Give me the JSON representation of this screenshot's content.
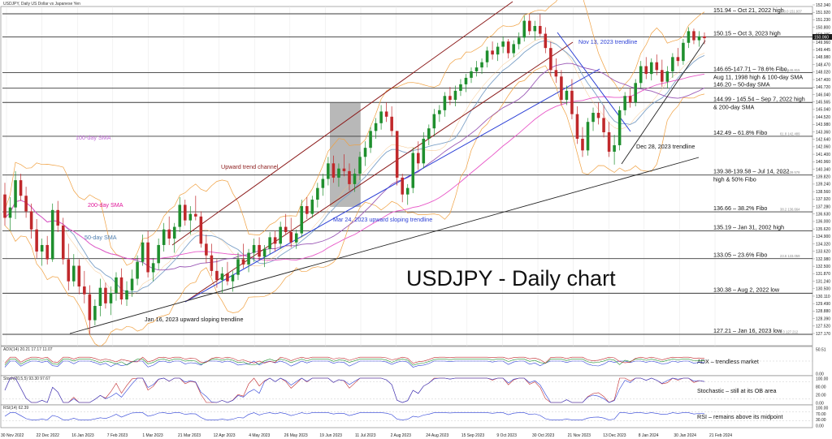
{
  "header": {
    "symbol_text": "USDJPY, Daily  US Dollar vs Japanese Yen"
  },
  "chart_data": {
    "type": "candlestick",
    "title": "USDJPY - Daily chart",
    "x_ticks": [
      "30 Nov 2022",
      "22 Dec 2022",
      "16 Jan 2023",
      "7 Feb 2023",
      "1 Mar 2023",
      "21 Mar 2023",
      "12 Apr 2023",
      "4 May 2023",
      "26 May 2023",
      "19 Jun 2023",
      "11 Jul 2023",
      "2 Aug 2023",
      "24 Aug 2023",
      "15 Sep 2023",
      "9 Oct 2023",
      "30 Oct 2023",
      "21 Nov 2023",
      "13 Dec 2023",
      "8 Jan 2024",
      "30 Jan 2024",
      "21 Feb 2024"
    ],
    "y_ticks": [
      152.34,
      151.92,
      151.23,
      150.8,
      150.385,
      149.96,
      149.445,
      148.98,
      148.47,
      148.02,
      147.4,
      146.72,
      146.04,
      145.565,
      145.04,
      144.52,
      143.98,
      143.36,
      142.64,
      142.06,
      141.4,
      140.96,
      140.34,
      139.82,
      139.24,
      138.56,
      137.92,
      137.28,
      136.63,
      136.0,
      135.62,
      134.9,
      134.32,
      133.62,
      132.98,
      132.5,
      131.87,
      131.24,
      130.5,
      130.11,
      129.49,
      128.88,
      128.39,
      127.52,
      127.17
    ],
    "y_range": [
      127.2,
      152.34
    ],
    "current_price": 150.06,
    "candles": [
      [
        138.0,
        138.9,
        135.6,
        136.2
      ],
      [
        136.2,
        137.8,
        135.2,
        137.0
      ],
      [
        137.0,
        139.8,
        136.1,
        139.1
      ],
      [
        139.1,
        139.6,
        137.5,
        137.9
      ],
      [
        137.9,
        138.6,
        136.2,
        136.7
      ],
      [
        136.7,
        137.3,
        134.6,
        135.3
      ],
      [
        135.3,
        136.1,
        133.1,
        133.6
      ],
      [
        133.6,
        134.6,
        132.5,
        134.1
      ],
      [
        134.1,
        134.8,
        132.6,
        133.0
      ],
      [
        133.0,
        137.3,
        132.8,
        136.8
      ],
      [
        136.8,
        137.5,
        135.1,
        135.6
      ],
      [
        135.6,
        136.2,
        132.6,
        133.0
      ],
      [
        133.0,
        134.2,
        130.6,
        131.3
      ],
      [
        131.3,
        133.4,
        130.9,
        132.5
      ],
      [
        132.5,
        133.0,
        130.3,
        130.9
      ],
      [
        130.9,
        132.1,
        129.6,
        130.3
      ],
      [
        130.3,
        131.0,
        127.2,
        128.3
      ],
      [
        128.3,
        129.9,
        127.9,
        129.4
      ],
      [
        129.4,
        131.5,
        128.6,
        130.8
      ],
      [
        130.8,
        131.2,
        129.2,
        129.6
      ],
      [
        129.6,
        130.9,
        128.7,
        130.4
      ],
      [
        130.4,
        132.0,
        129.8,
        131.6
      ],
      [
        131.6,
        132.3,
        129.5,
        129.9
      ],
      [
        129.9,
        131.3,
        129.4,
        130.6
      ],
      [
        130.6,
        132.2,
        130.1,
        131.5
      ],
      [
        131.5,
        133.3,
        131.0,
        132.8
      ],
      [
        132.8,
        134.9,
        132.5,
        134.3
      ],
      [
        134.3,
        135.2,
        131.6,
        132.0
      ],
      [
        132.0,
        133.1,
        131.3,
        132.7
      ],
      [
        132.7,
        134.6,
        132.2,
        134.1
      ],
      [
        134.1,
        135.8,
        133.6,
        135.3
      ],
      [
        135.3,
        136.3,
        134.1,
        134.6
      ],
      [
        134.6,
        135.8,
        133.5,
        135.5
      ],
      [
        135.5,
        137.8,
        135.1,
        137.2
      ],
      [
        137.2,
        137.6,
        135.6,
        136.0
      ],
      [
        136.0,
        137.1,
        134.9,
        136.5
      ],
      [
        136.5,
        137.9,
        136.0,
        136.3
      ],
      [
        136.3,
        136.7,
        133.9,
        134.2
      ],
      [
        134.2,
        134.9,
        132.7,
        133.3
      ],
      [
        133.3,
        134.2,
        131.7,
        132.1
      ],
      [
        132.1,
        133.0,
        130.8,
        131.4
      ],
      [
        131.4,
        132.4,
        130.4,
        131.9
      ],
      [
        131.9,
        132.8,
        131.0,
        131.3
      ],
      [
        131.3,
        132.1,
        130.5,
        131.8
      ],
      [
        131.8,
        133.5,
        131.4,
        133.0
      ],
      [
        133.0,
        134.2,
        132.3,
        132.6
      ],
      [
        132.6,
        133.8,
        132.0,
        133.5
      ],
      [
        133.5,
        134.6,
        132.8,
        134.1
      ],
      [
        134.1,
        134.7,
        132.9,
        133.2
      ],
      [
        133.2,
        134.1,
        132.4,
        133.8
      ],
      [
        133.8,
        135.1,
        133.4,
        134.7
      ],
      [
        134.7,
        135.2,
        133.6,
        134.2
      ],
      [
        134.2,
        135.9,
        133.8,
        135.5
      ],
      [
        135.5,
        136.5,
        134.9,
        135.1
      ],
      [
        135.1,
        136.2,
        133.9,
        134.3
      ],
      [
        134.3,
        135.3,
        133.8,
        135.0
      ],
      [
        135.0,
        137.6,
        134.7,
        137.1
      ],
      [
        137.1,
        137.8,
        136.1,
        136.5
      ],
      [
        136.5,
        137.9,
        136.2,
        137.6
      ],
      [
        137.6,
        138.9,
        137.0,
        138.5
      ],
      [
        138.5,
        139.6,
        137.9,
        139.2
      ],
      [
        139.2,
        140.9,
        138.7,
        140.4
      ],
      [
        140.4,
        141.0,
        138.9,
        139.3
      ],
      [
        139.3,
        140.4,
        138.6,
        140.0
      ],
      [
        140.0,
        141.1,
        139.4,
        139.8
      ],
      [
        139.8,
        140.4,
        138.3,
        138.8
      ],
      [
        138.8,
        140.0,
        138.2,
        139.6
      ],
      [
        139.6,
        141.3,
        139.1,
        140.9
      ],
      [
        140.9,
        142.1,
        140.2,
        141.6
      ],
      [
        141.6,
        143.2,
        141.2,
        142.9
      ],
      [
        142.9,
        143.9,
        142.3,
        143.5
      ],
      [
        143.5,
        144.9,
        143.0,
        144.4
      ],
      [
        144.4,
        145.1,
        143.6,
        144.0
      ],
      [
        144.0,
        144.8,
        142.5,
        142.9
      ],
      [
        142.9,
        142.9,
        138.7,
        139.3
      ],
      [
        139.3,
        139.6,
        137.4,
        138.0
      ],
      [
        138.0,
        138.8,
        137.2,
        138.5
      ],
      [
        138.5,
        141.6,
        138.1,
        141.2
      ],
      [
        141.2,
        142.1,
        139.9,
        140.4
      ],
      [
        140.4,
        142.8,
        140.0,
        142.3
      ],
      [
        142.3,
        143.4,
        141.8,
        143.1
      ],
      [
        143.1,
        144.6,
        142.5,
        144.2
      ],
      [
        144.2,
        144.9,
        143.6,
        144.5
      ],
      [
        144.5,
        145.9,
        144.0,
        145.6
      ],
      [
        145.6,
        146.3,
        144.9,
        145.3
      ],
      [
        145.3,
        146.4,
        144.8,
        146.0
      ],
      [
        146.0,
        146.9,
        145.6,
        146.5
      ],
      [
        146.5,
        147.3,
        145.9,
        147.0
      ],
      [
        147.0,
        147.8,
        146.6,
        147.5
      ],
      [
        147.5,
        148.3,
        147.1,
        147.8
      ],
      [
        147.8,
        148.5,
        147.3,
        148.2
      ],
      [
        148.2,
        149.4,
        147.8,
        149.1
      ],
      [
        149.1,
        149.8,
        148.4,
        148.8
      ],
      [
        148.8,
        149.7,
        148.3,
        149.4
      ],
      [
        149.4,
        150.2,
        148.9,
        149.8
      ],
      [
        149.8,
        150.0,
        148.5,
        148.9
      ],
      [
        148.9,
        149.9,
        148.6,
        149.6
      ],
      [
        149.6,
        150.5,
        149.2,
        150.1
      ],
      [
        150.1,
        151.8,
        149.8,
        151.4
      ],
      [
        151.4,
        151.9,
        150.3,
        150.6
      ],
      [
        150.6,
        151.4,
        149.9,
        151.0
      ],
      [
        151.0,
        151.9,
        150.2,
        150.4
      ],
      [
        150.4,
        150.9,
        148.9,
        149.3
      ],
      [
        149.3,
        149.8,
        147.1,
        147.6
      ],
      [
        147.6,
        148.5,
        146.6,
        147.1
      ],
      [
        147.1,
        147.6,
        144.9,
        145.3
      ],
      [
        145.3,
        146.4,
        144.9,
        146.0
      ],
      [
        146.0,
        146.9,
        143.8,
        144.2
      ],
      [
        144.2,
        144.8,
        141.9,
        142.3
      ],
      [
        142.3,
        143.2,
        140.9,
        141.4
      ],
      [
        141.4,
        143.9,
        141.0,
        143.6
      ],
      [
        143.6,
        144.7,
        142.9,
        144.3
      ],
      [
        144.3,
        145.1,
        143.4,
        143.9
      ],
      [
        143.9,
        144.9,
        142.4,
        142.8
      ],
      [
        142.8,
        143.6,
        140.9,
        141.3
      ],
      [
        141.3,
        142.6,
        140.3,
        141.8
      ],
      [
        141.8,
        144.8,
        141.4,
        144.5
      ],
      [
        144.5,
        145.9,
        144.1,
        145.6
      ],
      [
        145.6,
        146.2,
        144.7,
        145.1
      ],
      [
        145.1,
        146.9,
        144.8,
        146.6
      ],
      [
        146.6,
        148.3,
        146.2,
        147.9
      ],
      [
        147.9,
        148.6,
        146.9,
        147.3
      ],
      [
        147.3,
        148.5,
        146.8,
        148.2
      ],
      [
        148.2,
        148.8,
        147.2,
        147.6
      ],
      [
        147.6,
        148.4,
        146.3,
        146.7
      ],
      [
        146.7,
        147.9,
        146.2,
        147.5
      ],
      [
        147.5,
        148.9,
        147.0,
        148.6
      ],
      [
        148.6,
        149.3,
        147.9,
        148.3
      ],
      [
        148.3,
        150.0,
        148.0,
        149.7
      ],
      [
        149.7,
        150.9,
        149.3,
        150.6
      ],
      [
        150.6,
        150.8,
        149.6,
        149.9
      ],
      [
        149.9,
        150.6,
        149.4,
        150.2
      ],
      [
        150.2,
        150.5,
        149.6,
        150.06
      ]
    ],
    "series": [
      {
        "name": "50-day SMA",
        "color": "#7ea2c8"
      },
      {
        "name": "100-day SMA",
        "color": "#9b59b6"
      },
      {
        "name": "200-day SMA",
        "color": "#e858c8"
      }
    ],
    "price_levels": [
      {
        "label": "151.94 – Oct 21, 2022 high",
        "value": 151.94,
        "fibo": "100.0 151.937"
      },
      {
        "label": "150.15 – Oct 3, 2023 high",
        "value": 150.15
      },
      {
        "label": "146.65-147.71 – 78.6% Fibo,",
        "label2": "Aug 11, 1998 high & 100-day SMA",
        "value": 147.4,
        "fibo": "78.6 146.815"
      },
      {
        "label": "146.20 – 50-day SMA",
        "value": 146.2
      },
      {
        "label": "144.99 - 145.54 – Sep 7, 2022 high",
        "label2": "& 200-day SMA",
        "value": 145.1
      },
      {
        "label": "142.49 – 61.8% Fibo",
        "value": 142.49,
        "fibo": "61.8 142.489"
      },
      {
        "label": "139.38-139.58 – Jul 14, 2022",
        "label2": "high & 50% Fibo",
        "value": 139.5,
        "fibo": "50.0 139.578"
      },
      {
        "label": "136.66 – 38.2% Fibo",
        "value": 136.66,
        "fibo": "38.2 136.664"
      },
      {
        "label": "135.19 – Jan 31, 2002 high",
        "value": 135.19
      },
      {
        "label": "133.05 – 23.6% Fibo",
        "value": 133.05,
        "fibo": "23.6 133.059"
      },
      {
        "label": "130.38 – Aug 2, 2022 low",
        "value": 130.38
      },
      {
        "label": "127.21 – Jan 16, 2023 low",
        "value": 127.21,
        "fibo": "0.0 127.212"
      }
    ],
    "annotations": [
      "Nov 13, 2023 trendline",
      "Upward trend channel",
      "100-day SMA",
      "200-day SMA",
      "50-day SMA",
      "Mar 24, 2023 upward sloping trendline",
      "Dec 28, 2023 trendline",
      "Jan 16, 2023 upward sloping trendline"
    ],
    "indicators": [
      {
        "name": "ADX",
        "header": "ADX(14) 20.21 17.17 11.07",
        "note": "ADX – trendless market",
        "ticks": [
          "50.51",
          "0.00"
        ]
      },
      {
        "name": "Stochastic",
        "header": "Stoch(20,5,5) 93.30 97.67",
        "note": "Stochastic – still at its OB area",
        "ticks": [
          "100.00",
          "80.00",
          "20.00",
          "0.00"
        ]
      },
      {
        "name": "RSI",
        "header": "RSI(14) 62.39",
        "note": "RSI – remains above its midpoint",
        "ticks": [
          "100.00",
          "70.00",
          "30.00",
          "0.00"
        ]
      }
    ]
  }
}
